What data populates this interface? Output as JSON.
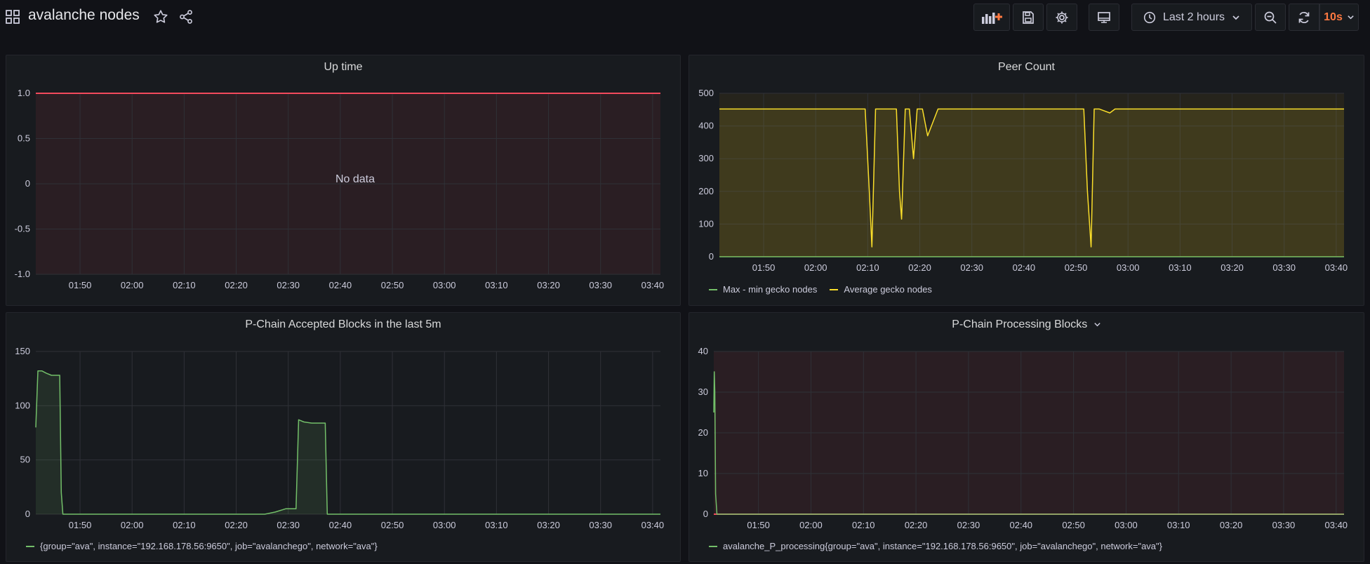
{
  "header": {
    "title": "avalanche nodes",
    "time_range": "Last 2 hours",
    "refresh_interval": "10s"
  },
  "colors": {
    "green": "#73bf69",
    "yellow": "#fade2a",
    "orange": "#ff9830",
    "red": "#f2495c",
    "accent": "#ff7941"
  },
  "panels": [
    {
      "id": "uptime",
      "title": "Up time",
      "no_data": "No data",
      "legend": []
    },
    {
      "id": "peers",
      "title": "Peer Count",
      "legend": [
        {
          "label": "Max - min gecko nodes",
          "color": "#73bf69"
        },
        {
          "label": "Average gecko nodes",
          "color": "#fade2a"
        }
      ]
    },
    {
      "id": "accepted",
      "title": "P-Chain Accepted Blocks in the last 5m",
      "legend": [
        {
          "label": "{group=\"ava\", instance=\"192.168.178.56:9650\", job=\"avalanchego\", network=\"ava\"}",
          "color": "#73bf69"
        }
      ]
    },
    {
      "id": "processing",
      "title": "P-Chain Processing Blocks",
      "legend": [
        {
          "label": "avalanche_P_processing{group=\"ava\", instance=\"192.168.178.56:9650\", job=\"avalanchego\", network=\"ava\"}",
          "color": "#73bf69"
        }
      ]
    }
  ],
  "chart_data": [
    {
      "type": "line",
      "title": "Up time",
      "x_ticks": [
        "01:50",
        "02:00",
        "02:10",
        "02:20",
        "02:30",
        "02:40",
        "02:50",
        "03:00",
        "03:10",
        "03:20",
        "03:30",
        "03:40"
      ],
      "y_ticks": [
        "1.0",
        "0.5",
        "0",
        "-0.5",
        "-1.0"
      ],
      "ylim": [
        -1,
        1
      ],
      "threshold": 1,
      "series": []
    },
    {
      "type": "line",
      "title": "Peer Count",
      "x_ticks": [
        "01:50",
        "02:00",
        "02:10",
        "02:20",
        "02:30",
        "02:40",
        "02:50",
        "03:00",
        "03:10",
        "03:20",
        "03:30",
        "03:40"
      ],
      "y_ticks": [
        "500",
        "400",
        "300",
        "200",
        "100",
        "0"
      ],
      "ylim": [
        0,
        500
      ],
      "x": [
        0,
        28,
        28.8,
        29.3,
        30,
        31,
        33,
        34,
        34.6,
        35,
        35.7,
        36.5,
        37.3,
        38,
        39,
        40,
        42,
        70,
        70.7,
        71.4,
        72,
        73,
        75,
        76,
        77,
        120
      ],
      "series": [
        {
          "name": "Max - min gecko nodes",
          "values": [
            0,
            0,
            0,
            0,
            0,
            0,
            0,
            0,
            0,
            0,
            0,
            0,
            0,
            0,
            0,
            0,
            0,
            0,
            0,
            0,
            0,
            0,
            0,
            0,
            0,
            0
          ]
        },
        {
          "name": "Average gecko nodes",
          "values": [
            452,
            452,
            200,
            30,
            452,
            452,
            452,
            452,
            200,
            115,
            452,
            452,
            300,
            452,
            452,
            370,
            452,
            452,
            200,
            30,
            452,
            452,
            440,
            452,
            452,
            452
          ]
        }
      ]
    },
    {
      "type": "area",
      "title": "P-Chain Accepted Blocks in the last 5m",
      "x_ticks": [
        "01:50",
        "02:00",
        "02:10",
        "02:20",
        "02:30",
        "02:40",
        "02:50",
        "03:00",
        "03:10",
        "03:20",
        "03:30",
        "03:40"
      ],
      "y_ticks": [
        "150",
        "100",
        "50",
        "0"
      ],
      "ylim": [
        0,
        150
      ],
      "x": [
        0,
        0.4,
        1.2,
        2.0,
        3.0,
        4.0,
        4.6,
        4.9,
        5.2,
        6,
        40,
        44,
        46,
        48,
        50,
        50.5,
        51.5,
        53,
        55,
        55.6,
        56,
        120
      ],
      "series": [
        {
          "name": "{group=\"ava\", instance=\"192.168.178.56:9650\", job=\"avalanchego\", network=\"ava\"}",
          "values": [
            80,
            132,
            132,
            130,
            128,
            128,
            128,
            20,
            0,
            0,
            0,
            0,
            2,
            5,
            5,
            87,
            85,
            84,
            84,
            84,
            0,
            0
          ]
        }
      ]
    },
    {
      "type": "line",
      "title": "P-Chain Processing Blocks",
      "x_ticks": [
        "01:50",
        "02:00",
        "02:10",
        "02:20",
        "02:30",
        "02:40",
        "02:50",
        "03:00",
        "03:10",
        "03:20",
        "03:30",
        "03:40"
      ],
      "y_ticks": [
        "40",
        "30",
        "20",
        "10",
        "0"
      ],
      "ylim": [
        0,
        40
      ],
      "threshold": 0,
      "x": [
        0,
        0.1,
        0.2,
        0.35,
        0.6,
        120
      ],
      "series": [
        {
          "name": "avalanche_P_processing{group=\"ava\", instance=\"192.168.178.56:9650\", job=\"avalanchego\", network=\"ava\"}",
          "values": [
            25,
            35,
            30,
            5,
            0,
            0
          ]
        }
      ]
    }
  ]
}
